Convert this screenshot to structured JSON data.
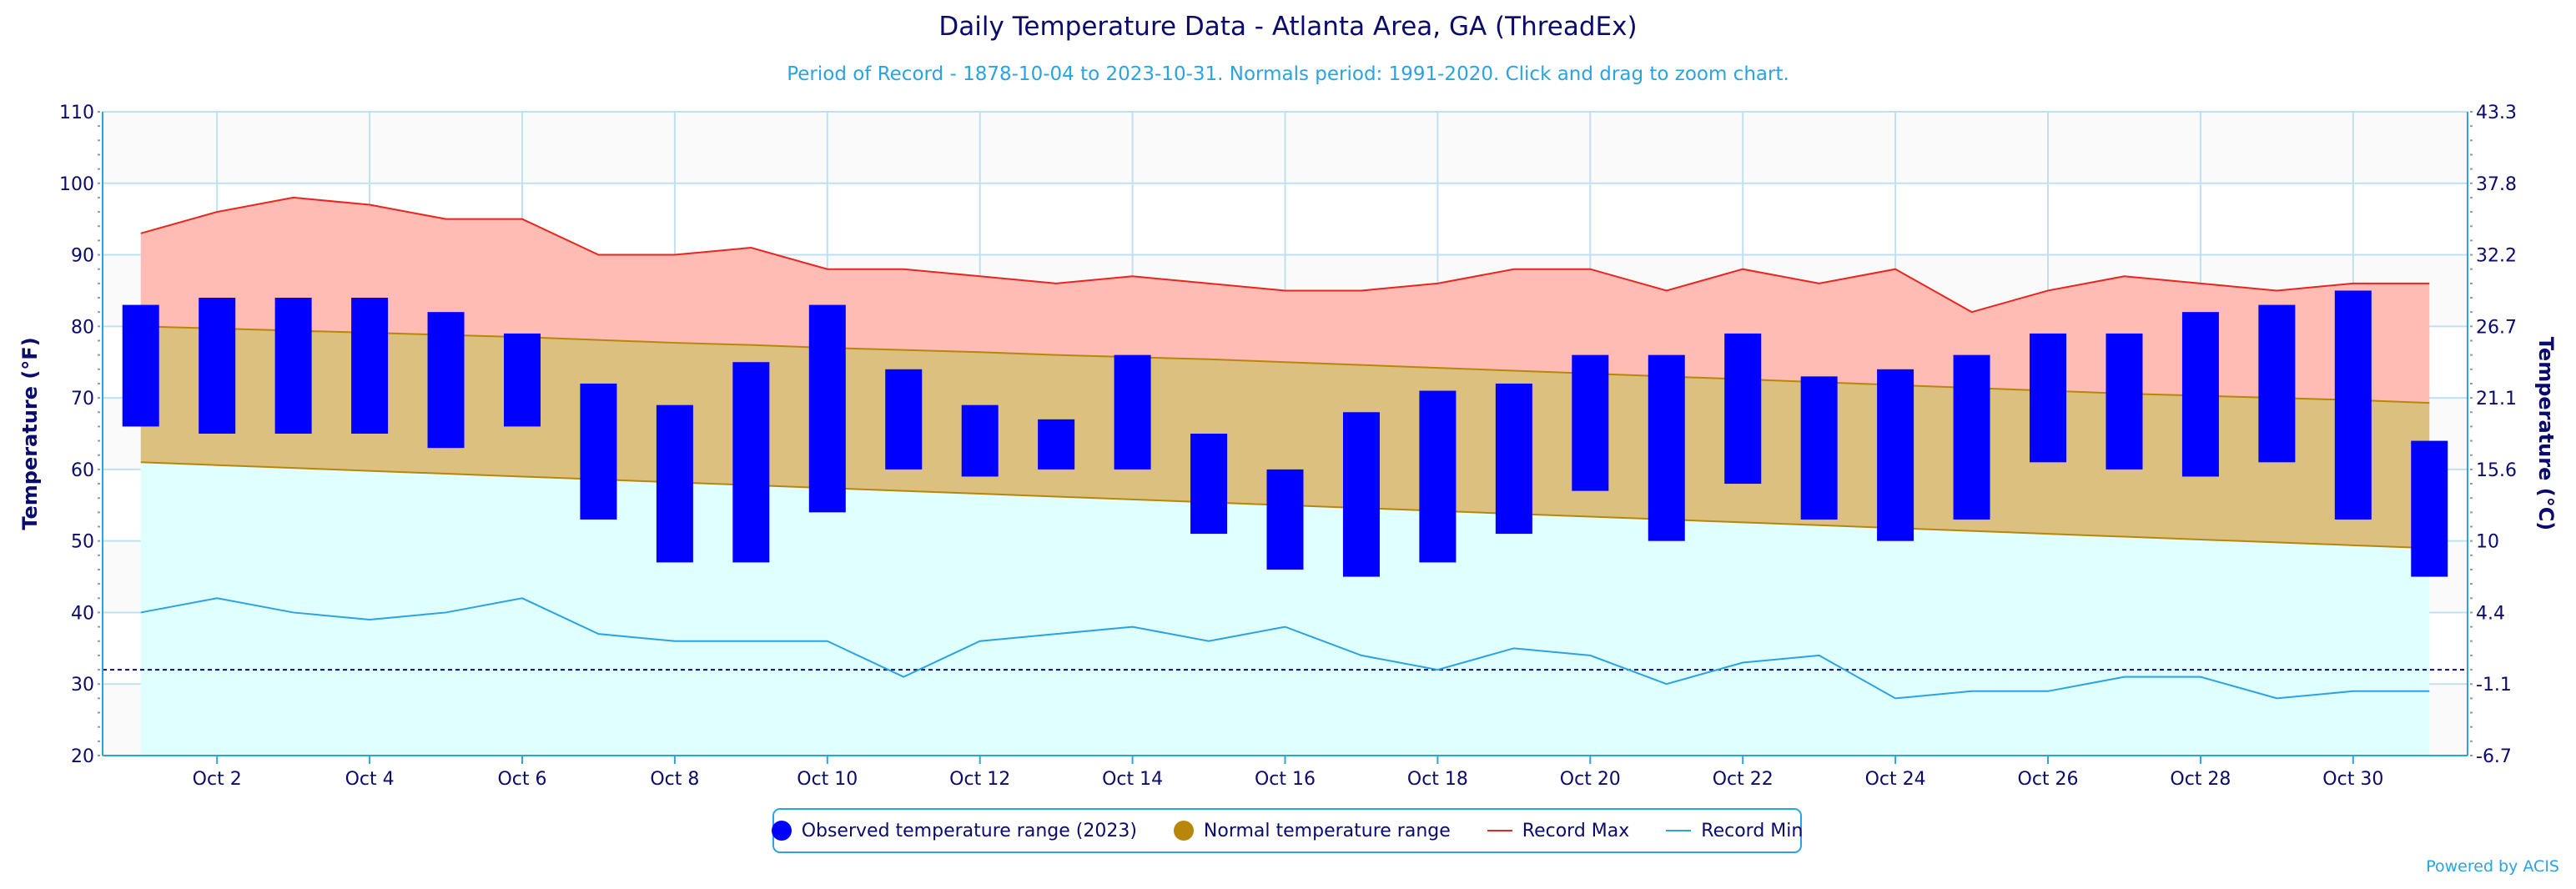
{
  "chart_data": {
    "type": "bar",
    "title": "Daily Temperature Data - Atlanta Area, GA (ThreadEx)",
    "subtitle": "Period of Record - 1878-10-04 to 2023-10-31. Normals period: 1991-2020. Click and drag to zoom chart.",
    "credits": "Powered by ACIS",
    "ylabel_left": "Temperature (°F)",
    "ylabel_right": "Temperature (°C)",
    "ylim": [
      20,
      110
    ],
    "yticks_left": [
      20,
      30,
      40,
      50,
      60,
      70,
      80,
      90,
      100,
      110
    ],
    "yticks_right": [
      "-6.7",
      "-1.1",
      "4.4",
      "10",
      "15.6",
      "21.1",
      "26.7",
      "32.2",
      "37.8",
      "43.3"
    ],
    "x_tick_labels": [
      "Oct 2",
      "Oct 4",
      "Oct 6",
      "Oct 8",
      "Oct 10",
      "Oct 12",
      "Oct 14",
      "Oct 16",
      "Oct 18",
      "Oct 20",
      "Oct 22",
      "Oct 24",
      "Oct 26",
      "Oct 28",
      "Oct 30"
    ],
    "x_tick_days": [
      2,
      4,
      6,
      8,
      10,
      12,
      14,
      16,
      18,
      20,
      22,
      24,
      26,
      28,
      30
    ],
    "days": [
      1,
      2,
      3,
      4,
      5,
      6,
      7,
      8,
      9,
      10,
      11,
      12,
      13,
      14,
      15,
      16,
      17,
      18,
      19,
      20,
      21,
      22,
      23,
      24,
      25,
      26,
      27,
      28,
      29,
      30,
      31
    ],
    "freezing_line": 32,
    "grid": true,
    "legend_position": "bottom-center",
    "series": [
      {
        "name": "Observed temperature range (2023)",
        "type": "columnrange",
        "color": "#0000ff",
        "low": [
          66,
          65,
          65,
          65,
          63,
          66,
          53,
          47,
          47,
          54,
          60,
          59,
          60,
          60,
          51,
          46,
          45,
          47,
          51,
          57,
          50,
          58,
          53,
          50,
          53,
          61,
          60,
          59,
          61,
          53,
          45
        ],
        "high": [
          83,
          84,
          84,
          84,
          82,
          79,
          72,
          69,
          75,
          83,
          74,
          69,
          67,
          76,
          65,
          60,
          68,
          71,
          72,
          76,
          76,
          79,
          73,
          74,
          76,
          79,
          79,
          82,
          83,
          85,
          64
        ]
      },
      {
        "name": "Normal temperature range",
        "type": "arearange",
        "color": "#b8860b",
        "low": [
          61,
          60.6,
          60.2,
          59.8,
          59.4,
          59,
          58.6,
          58.2,
          57.8,
          57.4,
          57,
          56.6,
          56.2,
          55.8,
          55.4,
          55,
          54.6,
          54.2,
          53.8,
          53.4,
          53,
          52.6,
          52.2,
          51.8,
          51.4,
          51,
          50.6,
          50.2,
          49.8,
          49.4,
          49
        ],
        "high": [
          80,
          79.7,
          79.4,
          79.1,
          78.8,
          78.5,
          78.1,
          77.7,
          77.4,
          77,
          76.7,
          76.4,
          76,
          75.7,
          75.4,
          75,
          74.6,
          74.2,
          73.8,
          73.4,
          73,
          72.6,
          72.2,
          71.8,
          71.4,
          71,
          70.6,
          70.3,
          70,
          69.7,
          69.3
        ]
      },
      {
        "name": "Record Max",
        "type": "line",
        "color": "#e8251f",
        "values": [
          93,
          96,
          98,
          97,
          95,
          95,
          90,
          90,
          91,
          88,
          88,
          87,
          86,
          87,
          86,
          85,
          85,
          86,
          88,
          88,
          85,
          88,
          86,
          88,
          82,
          85,
          87,
          86,
          85,
          86,
          86
        ]
      },
      {
        "name": "Record Min",
        "type": "line",
        "color": "#2aa3e0",
        "values": [
          40,
          42,
          40,
          39,
          40,
          42,
          37,
          36,
          36,
          36,
          31,
          36,
          37,
          38,
          36,
          38,
          34,
          32,
          35,
          34,
          30,
          33,
          34,
          28,
          29,
          29,
          31,
          31,
          28,
          29,
          29
        ]
      }
    ]
  }
}
